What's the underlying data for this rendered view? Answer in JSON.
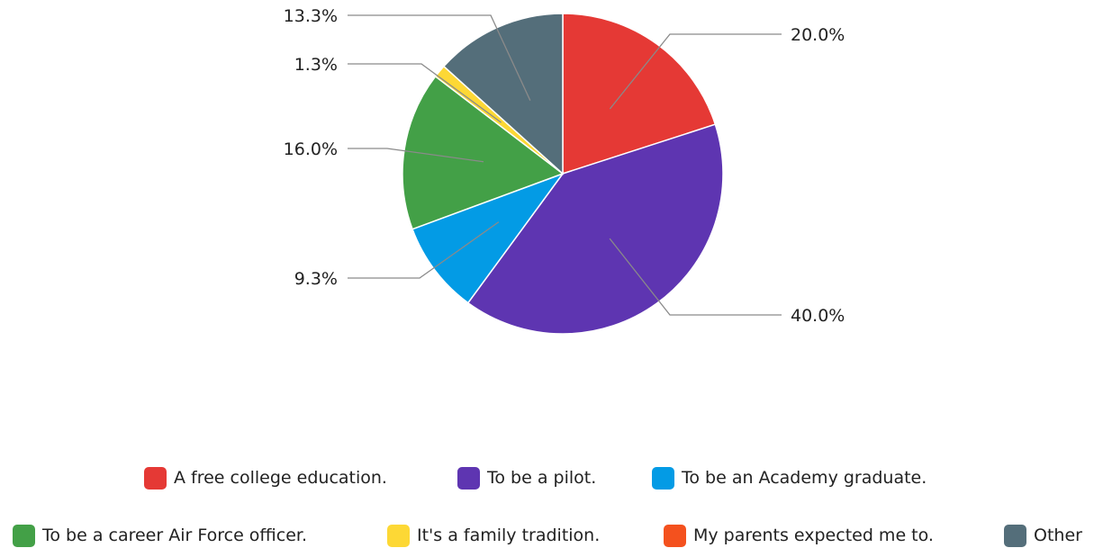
{
  "chart_data": {
    "type": "pie",
    "title": "",
    "slices": [
      {
        "label": "A free college education.",
        "value": 20.0,
        "color": "#e53935",
        "label_text": "20.0%"
      },
      {
        "label": "To be a pilot.",
        "value": 40.0,
        "color": "#5e35b1",
        "label_text": "40.0%"
      },
      {
        "label": "To be an Academy graduate.",
        "value": 9.3,
        "color": "#039be5",
        "label_text": "9.3%"
      },
      {
        "label": "To be a career Air Force officer.",
        "value": 16.0,
        "color": "#43a047",
        "label_text": "16.0%"
      },
      {
        "label": "It's a family tradition.",
        "value": 1.3,
        "color": "#fdd835",
        "label_text": "1.3%"
      },
      {
        "label": "My parents expected me to.",
        "value": 0.0,
        "color": "#f4511e",
        "label_text": ""
      },
      {
        "label": "Other",
        "value": 13.3,
        "color": "#546e7a",
        "label_text": "13.3%"
      }
    ],
    "legend_position": "bottom"
  }
}
